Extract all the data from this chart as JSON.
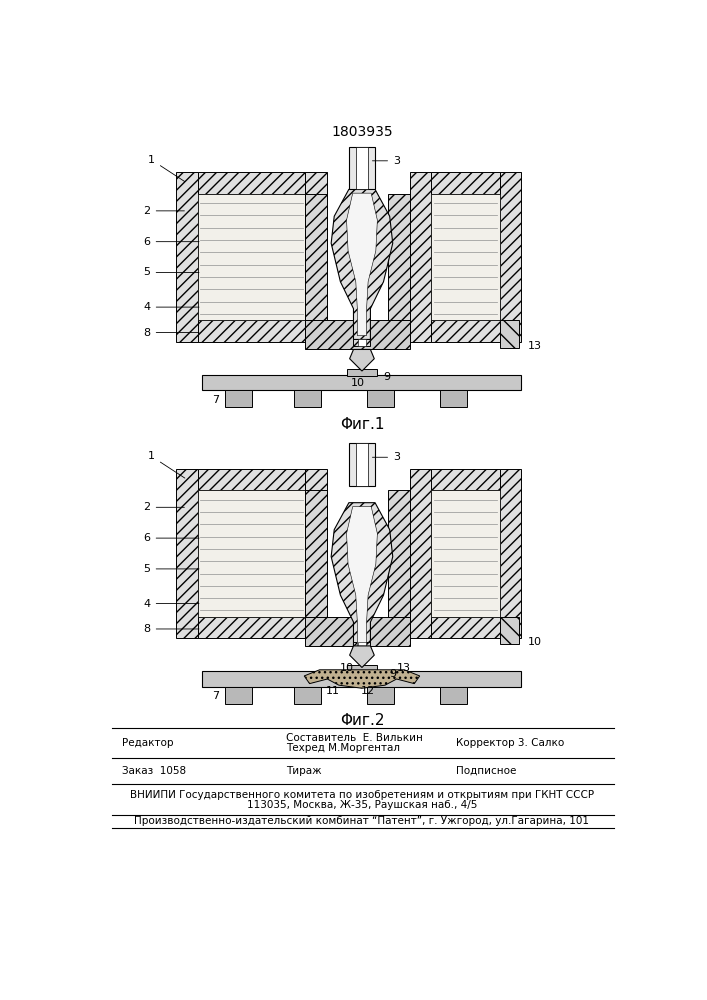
{
  "patent_number": "1803935",
  "fig1_caption": "Φиг.1",
  "fig2_caption": "Φиг.2",
  "footer_line1_col1": "Редактор",
  "footer_line1_col2a": "Составитель  Е. Вилькин",
  "footer_line1_col2b": "Техред М.Моргентал",
  "footer_line1_col3": "Корректор 3. Салко",
  "footer_line2_col1": "Заказ  1058",
  "footer_line2_col2": "Тираж",
  "footer_line2_col3": "Подписное",
  "footer_line3": "ВНИИПИ Государственного комитета по изобретениям и открытиям при ГКНТ СССР",
  "footer_line4": "113035, Москва, Ж-35, Раушская наб., 4/5",
  "footer_line5": "Производственно-издательский комбинат “Патент”, г. Ужгород, ул.Гагарина, 101",
  "bg_color": "#ffffff",
  "fig_width": 7.07,
  "fig_height": 10.0,
  "dpi": 100
}
